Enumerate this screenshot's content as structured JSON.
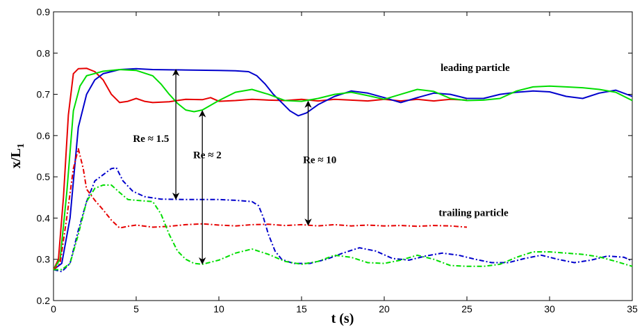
{
  "chart_data": {
    "type": "line",
    "title": "",
    "xlabel": "t (s)",
    "ylabel": "x/L",
    "ylabel_subscript": "1",
    "xlim": [
      0,
      35
    ],
    "ylim": [
      0.2,
      0.9
    ],
    "xticks": [
      0,
      5,
      10,
      15,
      20,
      25,
      30,
      35
    ],
    "yticks": [
      0.2,
      0.3,
      0.4,
      0.5,
      0.6,
      0.7,
      0.8,
      0.9
    ],
    "grid": false,
    "legend": "none",
    "series": [
      {
        "group": "leading",
        "color": "#e60000",
        "style": "solid",
        "points": [
          [
            0,
            0.275
          ],
          [
            0.3,
            0.3
          ],
          [
            0.6,
            0.45
          ],
          [
            0.9,
            0.65
          ],
          [
            1.2,
            0.75
          ],
          [
            1.5,
            0.762
          ],
          [
            2,
            0.763
          ],
          [
            2.5,
            0.755
          ],
          [
            3,
            0.735
          ],
          [
            3.5,
            0.7
          ],
          [
            4,
            0.68
          ],
          [
            4.5,
            0.683
          ],
          [
            5,
            0.69
          ],
          [
            5.5,
            0.683
          ],
          [
            6,
            0.68
          ],
          [
            7,
            0.682
          ],
          [
            8,
            0.688
          ],
          [
            9,
            0.687
          ],
          [
            9.5,
            0.692
          ],
          [
            10,
            0.683
          ],
          [
            11,
            0.685
          ],
          [
            12,
            0.688
          ],
          [
            13,
            0.686
          ],
          [
            14,
            0.685
          ],
          [
            15,
            0.688
          ],
          [
            16,
            0.684
          ],
          [
            17,
            0.688
          ],
          [
            18,
            0.686
          ],
          [
            19,
            0.684
          ],
          [
            20,
            0.688
          ],
          [
            21,
            0.684
          ],
          [
            22,
            0.688
          ],
          [
            23,
            0.684
          ],
          [
            24,
            0.688
          ],
          [
            25,
            0.686
          ]
        ]
      },
      {
        "group": "leading",
        "color": "#0000cc",
        "style": "solid",
        "points": [
          [
            0,
            0.275
          ],
          [
            0.5,
            0.29
          ],
          [
            1,
            0.4
          ],
          [
            1.5,
            0.62
          ],
          [
            2,
            0.7
          ],
          [
            2.5,
            0.735
          ],
          [
            3,
            0.75
          ],
          [
            4,
            0.76
          ],
          [
            5,
            0.762
          ],
          [
            6,
            0.76
          ],
          [
            8,
            0.759
          ],
          [
            10,
            0.758
          ],
          [
            11,
            0.757
          ],
          [
            11.8,
            0.755
          ],
          [
            12.3,
            0.745
          ],
          [
            12.8,
            0.725
          ],
          [
            13.3,
            0.7
          ],
          [
            13.8,
            0.68
          ],
          [
            14.3,
            0.66
          ],
          [
            14.8,
            0.648
          ],
          [
            15.3,
            0.655
          ],
          [
            16,
            0.675
          ],
          [
            17,
            0.695
          ],
          [
            18,
            0.708
          ],
          [
            19,
            0.703
          ],
          [
            20,
            0.692
          ],
          [
            21,
            0.68
          ],
          [
            22,
            0.692
          ],
          [
            23,
            0.703
          ],
          [
            24,
            0.7
          ],
          [
            25,
            0.69
          ],
          [
            26,
            0.69
          ],
          [
            27,
            0.7
          ],
          [
            28,
            0.705
          ],
          [
            29,
            0.708
          ],
          [
            30,
            0.706
          ],
          [
            31,
            0.695
          ],
          [
            32,
            0.69
          ],
          [
            33,
            0.703
          ],
          [
            34,
            0.71
          ],
          [
            35,
            0.695
          ]
        ]
      },
      {
        "group": "leading",
        "color": "#00dd00",
        "style": "solid",
        "points": [
          [
            0,
            0.275
          ],
          [
            0.4,
            0.3
          ],
          [
            0.8,
            0.46
          ],
          [
            1.2,
            0.66
          ],
          [
            1.6,
            0.72
          ],
          [
            2,
            0.745
          ],
          [
            3,
            0.756
          ],
          [
            4,
            0.76
          ],
          [
            5,
            0.758
          ],
          [
            6,
            0.745
          ],
          [
            6.5,
            0.725
          ],
          [
            7,
            0.7
          ],
          [
            7.5,
            0.678
          ],
          [
            8,
            0.662
          ],
          [
            8.5,
            0.658
          ],
          [
            9,
            0.662
          ],
          [
            10,
            0.685
          ],
          [
            11,
            0.705
          ],
          [
            12,
            0.712
          ],
          [
            13,
            0.7
          ],
          [
            14,
            0.685
          ],
          [
            15,
            0.683
          ],
          [
            16,
            0.69
          ],
          [
            17,
            0.7
          ],
          [
            18,
            0.705
          ],
          [
            19,
            0.697
          ],
          [
            20,
            0.688
          ],
          [
            21,
            0.7
          ],
          [
            22,
            0.712
          ],
          [
            23,
            0.707
          ],
          [
            24,
            0.69
          ],
          [
            25,
            0.685
          ],
          [
            26,
            0.686
          ],
          [
            27,
            0.69
          ],
          [
            28,
            0.708
          ],
          [
            29,
            0.718
          ],
          [
            30,
            0.72
          ],
          [
            31,
            0.718
          ],
          [
            32,
            0.716
          ],
          [
            33,
            0.712
          ],
          [
            34,
            0.705
          ],
          [
            35,
            0.685
          ]
        ]
      },
      {
        "group": "trailing",
        "color": "#e60000",
        "style": "dashdot",
        "points": [
          [
            0,
            0.275
          ],
          [
            0.4,
            0.29
          ],
          [
            0.8,
            0.4
          ],
          [
            1.2,
            0.52
          ],
          [
            1.5,
            0.568
          ],
          [
            1.8,
            0.52
          ],
          [
            2,
            0.47
          ],
          [
            2.5,
            0.443
          ],
          [
            3,
            0.42
          ],
          [
            3.5,
            0.395
          ],
          [
            4,
            0.376
          ],
          [
            4.5,
            0.38
          ],
          [
            5,
            0.383
          ],
          [
            6,
            0.378
          ],
          [
            7,
            0.38
          ],
          [
            8,
            0.384
          ],
          [
            9,
            0.386
          ],
          [
            10,
            0.383
          ],
          [
            11,
            0.381
          ],
          [
            12,
            0.384
          ],
          [
            13,
            0.385
          ],
          [
            14,
            0.382
          ],
          [
            15,
            0.384
          ],
          [
            16,
            0.381
          ],
          [
            17,
            0.384
          ],
          [
            18,
            0.381
          ],
          [
            19,
            0.383
          ],
          [
            20,
            0.381
          ],
          [
            21,
            0.382
          ],
          [
            22,
            0.38
          ],
          [
            23,
            0.382
          ],
          [
            24,
            0.381
          ],
          [
            25,
            0.378
          ]
        ]
      },
      {
        "group": "trailing",
        "color": "#0000cc",
        "style": "dashdot",
        "points": [
          [
            0,
            0.275
          ],
          [
            0.5,
            0.27
          ],
          [
            1,
            0.29
          ],
          [
            1.5,
            0.37
          ],
          [
            2,
            0.44
          ],
          [
            2.5,
            0.49
          ],
          [
            3,
            0.505
          ],
          [
            3.5,
            0.52
          ],
          [
            3.8,
            0.522
          ],
          [
            4.2,
            0.49
          ],
          [
            4.8,
            0.465
          ],
          [
            5.5,
            0.452
          ],
          [
            6.5,
            0.446
          ],
          [
            8,
            0.445
          ],
          [
            9,
            0.445
          ],
          [
            10,
            0.445
          ],
          [
            11,
            0.443
          ],
          [
            12,
            0.44
          ],
          [
            12.4,
            0.43
          ],
          [
            12.7,
            0.4
          ],
          [
            13,
            0.36
          ],
          [
            13.4,
            0.32
          ],
          [
            13.8,
            0.3
          ],
          [
            14.5,
            0.29
          ],
          [
            15.5,
            0.29
          ],
          [
            16.5,
            0.3
          ],
          [
            17.5,
            0.315
          ],
          [
            18.5,
            0.328
          ],
          [
            19.5,
            0.32
          ],
          [
            20.5,
            0.302
          ],
          [
            21.5,
            0.298
          ],
          [
            22.5,
            0.308
          ],
          [
            23.5,
            0.315
          ],
          [
            24.5,
            0.31
          ],
          [
            25.5,
            0.3
          ],
          [
            26.5,
            0.292
          ],
          [
            27.5,
            0.292
          ],
          [
            28.5,
            0.302
          ],
          [
            29.5,
            0.31
          ],
          [
            30.5,
            0.3
          ],
          [
            31.5,
            0.292
          ],
          [
            32.5,
            0.298
          ],
          [
            33.5,
            0.308
          ],
          [
            34.5,
            0.305
          ],
          [
            35,
            0.296
          ]
        ]
      },
      {
        "group": "trailing",
        "color": "#00dd00",
        "style": "dashdot",
        "points": [
          [
            0,
            0.275
          ],
          [
            0.5,
            0.275
          ],
          [
            1,
            0.29
          ],
          [
            1.5,
            0.36
          ],
          [
            2,
            0.44
          ],
          [
            2.5,
            0.472
          ],
          [
            3,
            0.48
          ],
          [
            3.5,
            0.48
          ],
          [
            4,
            0.462
          ],
          [
            4.5,
            0.445
          ],
          [
            5,
            0.443
          ],
          [
            6,
            0.44
          ],
          [
            6.5,
            0.41
          ],
          [
            7,
            0.36
          ],
          [
            7.5,
            0.32
          ],
          [
            8,
            0.3
          ],
          [
            8.5,
            0.29
          ],
          [
            9,
            0.288
          ],
          [
            10,
            0.298
          ],
          [
            11,
            0.315
          ],
          [
            12,
            0.325
          ],
          [
            13,
            0.312
          ],
          [
            14,
            0.295
          ],
          [
            15,
            0.288
          ],
          [
            16,
            0.295
          ],
          [
            17,
            0.31
          ],
          [
            18,
            0.305
          ],
          [
            19,
            0.292
          ],
          [
            20,
            0.29
          ],
          [
            21,
            0.298
          ],
          [
            22,
            0.31
          ],
          [
            23,
            0.3
          ],
          [
            24,
            0.285
          ],
          [
            25,
            0.283
          ],
          [
            26,
            0.283
          ],
          [
            27,
            0.288
          ],
          [
            28,
            0.305
          ],
          [
            29,
            0.318
          ],
          [
            30,
            0.318
          ],
          [
            31,
            0.315
          ],
          [
            32,
            0.312
          ],
          [
            33,
            0.306
          ],
          [
            34,
            0.295
          ],
          [
            35,
            0.283
          ]
        ]
      }
    ],
    "annotations": [
      {
        "text": "leading particle",
        "x": 25.5,
        "y": 0.757
      },
      {
        "text": "trailing particle",
        "x": 25.4,
        "y": 0.405
      },
      {
        "text": "Re ≈ 1.5",
        "x": 5.9,
        "y": 0.585
      },
      {
        "text": "Re ≈ 2",
        "x": 9.3,
        "y": 0.545
      },
      {
        "text": "Re ≈ 10",
        "x": 16.1,
        "y": 0.533
      }
    ],
    "arrows": [
      {
        "x": 7.4,
        "y1": 0.76,
        "y2": 0.446
      },
      {
        "x": 9.0,
        "y1": 0.66,
        "y2": 0.289
      },
      {
        "x": 15.4,
        "y1": 0.683,
        "y2": 0.383
      }
    ]
  }
}
